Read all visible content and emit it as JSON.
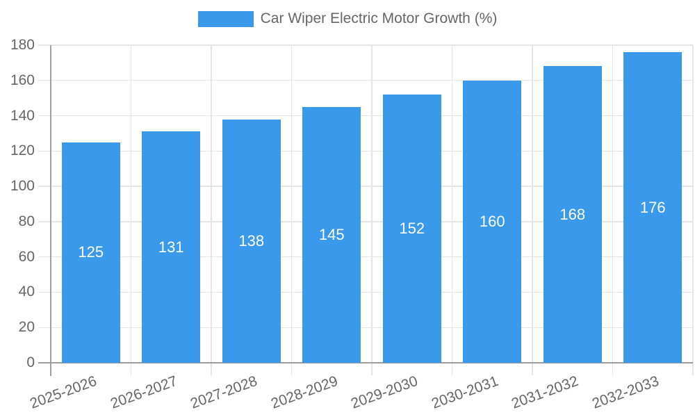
{
  "chart_data": {
    "type": "bar",
    "title": "Car Wiper Electric Motor Growth (%)",
    "categories": [
      "2025-2026",
      "2026-2027",
      "2027-2028",
      "2028-2029",
      "2029-2030",
      "2030-2031",
      "2031-2032",
      "2032-2033"
    ],
    "values": [
      125,
      131,
      138,
      145,
      152,
      160,
      168,
      176
    ],
    "xlabel": "",
    "ylabel": "",
    "ylim": [
      0,
      180
    ],
    "ytick_step": 20,
    "grid": true,
    "legend_position": "top",
    "colors": {
      "bar": "#3b99ec",
      "grid": "#e5e5e5",
      "axis": "#9e9e9e",
      "text": "#666666",
      "bar_label": "#ffffff"
    }
  }
}
